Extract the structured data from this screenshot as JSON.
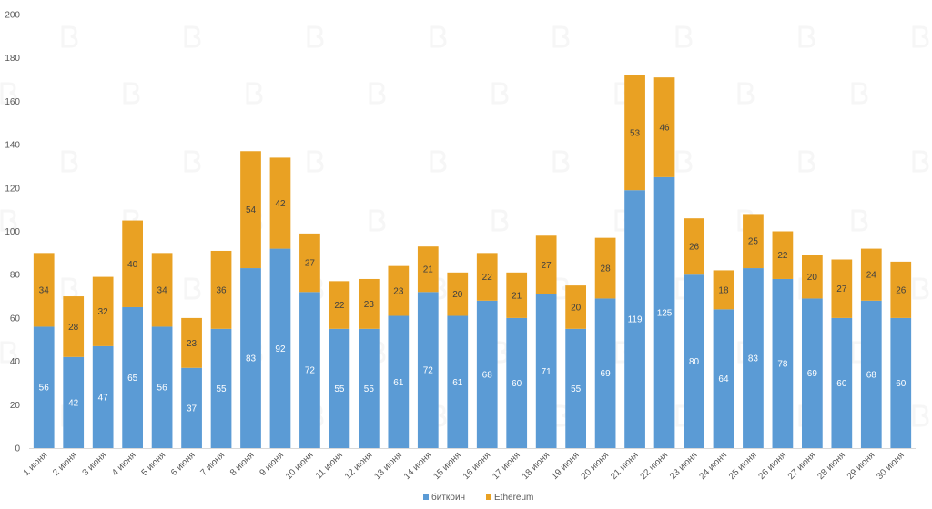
{
  "chart_data": {
    "type": "bar",
    "stacked": true,
    "title": "",
    "xlabel": "",
    "ylabel": "",
    "ylim": [
      0,
      200
    ],
    "yticks": [
      0,
      20,
      40,
      60,
      80,
      100,
      120,
      140,
      160,
      180,
      200
    ],
    "grid": false,
    "legend_position": "bottom",
    "categories": [
      "1 июня",
      "2 июня",
      "3 июня",
      "4 июня",
      "5 июня",
      "6 июня",
      "7 июня",
      "8 июня",
      "9 июня",
      "10 июня",
      "11 июня",
      "12 июня",
      "13 июня",
      "14 июня",
      "15 июня",
      "16 июня",
      "17 июня",
      "18 июня",
      "19 июня",
      "20 июня",
      "21 июня",
      "22 июня",
      "23 июня",
      "24 июня",
      "25 июня",
      "26 июня",
      "27 июня",
      "28 июня",
      "29 июня",
      "30 июня"
    ],
    "series": [
      {
        "name": "биткоин",
        "color": "#5b9bd5",
        "label_color": "#ffffff",
        "values": [
          56,
          42,
          47,
          65,
          56,
          37,
          55,
          83,
          92,
          72,
          55,
          55,
          61,
          72,
          61,
          68,
          60,
          71,
          55,
          69,
          119,
          125,
          80,
          64,
          83,
          78,
          69,
          60,
          68,
          60
        ]
      },
      {
        "name": "Ethereum",
        "color": "#e9a123",
        "label_color": "#404040",
        "values": [
          34,
          28,
          32,
          40,
          34,
          23,
          36,
          54,
          42,
          27,
          22,
          23,
          23,
          21,
          20,
          22,
          21,
          27,
          20,
          28,
          53,
          46,
          26,
          18,
          25,
          22,
          20,
          27,
          24,
          26
        ]
      }
    ]
  }
}
